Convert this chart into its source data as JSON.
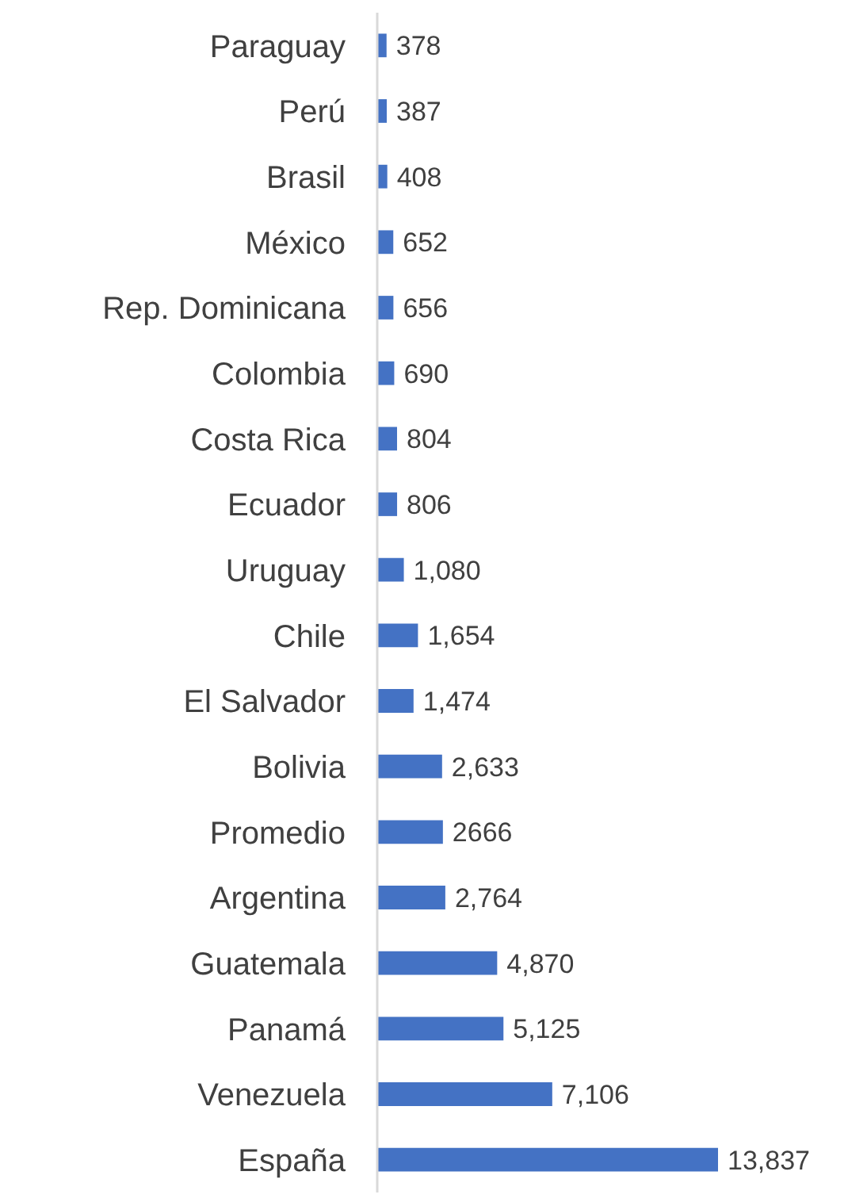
{
  "chart_data": {
    "type": "bar",
    "orientation": "horizontal",
    "color": "#4472c4",
    "categories": [
      "Paraguay",
      "Perú",
      "Brasil",
      "México",
      "Rep. Dominicana",
      "Colombia",
      "Costa Rica",
      "Ecuador",
      "Uruguay",
      "Chile",
      "El Salvador",
      "Bolivia",
      "Promedio",
      "Argentina",
      "Guatemala",
      "Panamá",
      "Venezuela",
      "España"
    ],
    "values": [
      378,
      387,
      408,
      652,
      656,
      690,
      804,
      806,
      1080,
      1654,
      1474,
      2633,
      2666,
      2764,
      4870,
      5125,
      7106,
      13837
    ],
    "value_labels": [
      "378",
      "387",
      "408",
      "652",
      "656",
      "690",
      "804",
      "806",
      "1,080",
      "1,654",
      "1,474",
      "2,633",
      "2666",
      "2,764",
      "4,870",
      "5,125",
      "7,106",
      "13,837"
    ]
  }
}
